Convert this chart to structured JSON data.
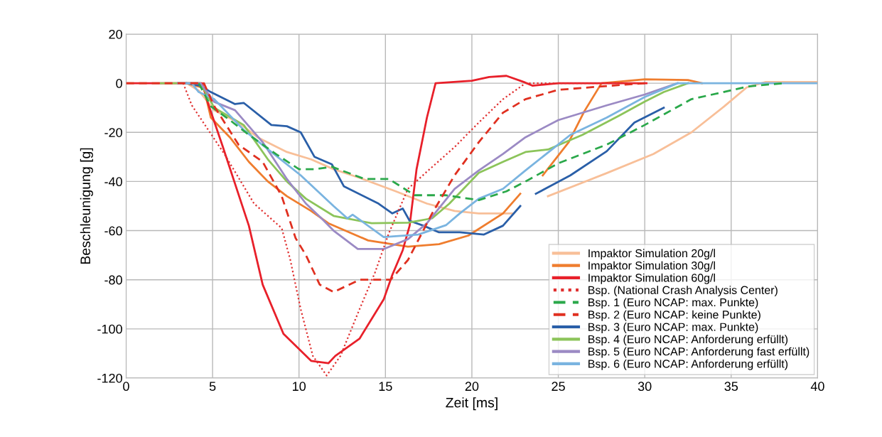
{
  "chart_data": {
    "type": "line",
    "xlabel": "Zeit [ms]",
    "ylabel": "Beschleunigung [g]",
    "xlim": [
      0,
      40
    ],
    "xticks": [
      0,
      5,
      10,
      15,
      20,
      25,
      30,
      35,
      40
    ],
    "ylim": [
      -120,
      20
    ],
    "yticks": [
      -120,
      -100,
      -80,
      -60,
      -40,
      -20,
      0,
      20
    ],
    "grid": true,
    "legend": "bottom right",
    "marker": "none",
    "series": [
      {
        "name": "Impaktor Simulation 20g/l",
        "color": "#f8bf98",
        "line_style": "solid",
        "x": [
          3.5,
          4.2,
          5.1,
          6.5,
          7.6,
          9.3,
          10.7,
          12,
          13.5,
          15.6,
          17.4,
          19,
          20.4,
          22.4,
          23.5,
          24.4,
          27.8,
          30.5,
          32.7,
          34.6,
          35.9,
          37,
          40
        ],
        "values": [
          0,
          -3,
          -11,
          -16,
          -22,
          -28,
          -31,
          -35,
          -38.5,
          -44,
          -49,
          -52,
          -53,
          -53,
          null,
          -46,
          -36.6,
          -28.8,
          -20,
          -9.4,
          -1.7,
          0.5,
          0.5
        ]
      },
      {
        "name": "Impaktor Simulation 30g/l",
        "color": "#ef7d2e",
        "line_style": "solid",
        "x": [
          3.5,
          4.5,
          4.9,
          6,
          7.1,
          8.2,
          9.3,
          10.7,
          11.7,
          14,
          16.3,
          18.1,
          19.8,
          21.8,
          22.8,
          23.3,
          24.1,
          25.6,
          26.5,
          27.5,
          30,
          32.5,
          33.3
        ],
        "values": [
          0,
          -2,
          -14,
          -22,
          -32,
          -40,
          -46,
          -52,
          -57,
          -64,
          -66.5,
          -65.5,
          -62,
          -53,
          -45,
          null,
          -37.5,
          -24,
          -11.5,
          0,
          1.6,
          1.3,
          0
        ]
      },
      {
        "name": "Impaktor Simulation 60g/l",
        "color": "#e8202a",
        "line_style": "solid",
        "x": [
          0,
          4.4,
          4.7,
          5.6,
          7.1,
          7.9,
          9.1,
          10.7,
          11.7,
          12.1,
          13.5,
          14.9,
          15.4,
          16,
          16.4,
          16.8,
          17.4,
          17.9,
          20,
          21,
          22,
          23,
          23.5,
          25,
          30.1
        ],
        "values": [
          0,
          0,
          -7.4,
          -26,
          -58,
          -82,
          -102,
          -113,
          -114,
          -111,
          -104,
          -88,
          -78,
          -68,
          -58,
          -35,
          -14,
          0,
          1,
          2.5,
          3,
          0.5,
          -1,
          0,
          0
        ]
      },
      {
        "name": "Bsp. (National Crash Analysis Center)",
        "color": "#e03030",
        "line_style": "dotted",
        "x": [
          3.3,
          3.8,
          5.7,
          7.4,
          9,
          9.5,
          10.1,
          10.8,
          11.6,
          12.4,
          13.5,
          14.4,
          15.2,
          16.3,
          17.4,
          19,
          20.4,
          21.8,
          23.1,
          30
        ],
        "values": [
          0,
          -9,
          -29,
          -49,
          -59,
          -72,
          -92,
          -111,
          -119,
          -111,
          -92,
          -77,
          -61,
          -43,
          -36,
          -26,
          -16,
          -6.5,
          0,
          0
        ]
      },
      {
        "name": "Bsp. 1 (Euro NCAP: max. Punkte)",
        "color": "#2aa84a",
        "line_style": "dashed",
        "x": [
          4.2,
          4.9,
          6,
          7.1,
          8.7,
          10,
          10.9,
          11.9,
          13.8,
          15.2,
          16.7,
          18.5,
          20.4,
          22,
          23.1,
          25,
          27.8,
          30,
          32.7,
          36,
          38
        ],
        "values": [
          0,
          -9.4,
          -15,
          -21,
          -29,
          -35,
          -35,
          -34,
          -39,
          -39,
          -45.6,
          -45.6,
          -47.6,
          -44,
          -40,
          -32.6,
          -25,
          -17,
          -6.5,
          -1.3,
          0
        ]
      },
      {
        "name": "Bsp. 2 (Euro NCAP: keine Punkte)",
        "color": "#e03020",
        "line_style": "dashed",
        "x": [
          0,
          4.5,
          5.1,
          6.5,
          7.9,
          9,
          9.8,
          10.4,
          11.2,
          12,
          13.5,
          15.3,
          16.3,
          17.7,
          19,
          20.4,
          21.8,
          23.1,
          25,
          27.5,
          30
        ],
        "values": [
          0,
          0,
          -9.4,
          -25,
          -32,
          -46,
          -63,
          -70,
          -82,
          -85,
          -80,
          -80,
          -72,
          -53,
          -37.5,
          -24,
          -12,
          -6.5,
          -2.7,
          -1.3,
          0
        ]
      },
      {
        "name": "Bsp. 3 (Euro NCAP: max. Punkte)",
        "color": "#2a5fa8",
        "line_style": "solid",
        "x": [
          3.5,
          4.3,
          4.9,
          6.3,
          6.8,
          8.4,
          9.3,
          10.1,
          10.9,
          11.9,
          12.6,
          14.6,
          15.4,
          16,
          16.4,
          17.2,
          18.1,
          19.3,
          20.7,
          21.8,
          22.8,
          23.2,
          23.7,
          25.7,
          27.8,
          29.4,
          31.1
        ],
        "values": [
          0,
          -1,
          -3.6,
          -8.5,
          -8,
          -17,
          -17.5,
          -20,
          -30,
          -33,
          -42,
          -49,
          -53,
          -51,
          -56,
          -58,
          -60.7,
          -60.7,
          -61.6,
          -58,
          -50,
          null,
          -45,
          -37.5,
          -27.7,
          -16,
          -10
        ]
      },
      {
        "name": "Bsp. 4 (Euro NCAP: Anforderung erfüllt)",
        "color": "#8cc45a",
        "line_style": "solid",
        "x": [
          2,
          4.3,
          5.1,
          6.8,
          8.2,
          9.3,
          10.4,
          12,
          14.2,
          16.3,
          17.7,
          18.7,
          20.4,
          21.8,
          23.1,
          24.4,
          26.4,
          28.5,
          30,
          31.1,
          32.5
        ],
        "values": [
          0,
          0,
          -10,
          -17,
          -31,
          -40,
          -47,
          -54,
          -57,
          -56.8,
          -55,
          -49,
          -36.5,
          -32,
          -28,
          -27,
          -21,
          -13.3,
          -7.5,
          -3.6,
          0
        ]
      },
      {
        "name": "Bsp. 5 (Euro NCAP: Anforderung fast erfüllt)",
        "color": "#9b8ac4",
        "line_style": "solid",
        "x": [
          3,
          4.3,
          5.1,
          6.3,
          7.9,
          9.3,
          10.4,
          11.3,
          12,
          13.4,
          14.9,
          16.3,
          17.4,
          19,
          20.4,
          21.8,
          23.1,
          25,
          27.8,
          30,
          31.9
        ],
        "values": [
          0,
          0,
          -7.6,
          -11,
          -24,
          -39,
          -49,
          -55,
          -60,
          -67.5,
          -67.5,
          -63.5,
          -57,
          -43,
          -35.5,
          -28.8,
          -22,
          -15,
          -9,
          -4.6,
          0
        ]
      },
      {
        "name": "Bsp. 6 (Euro NCAP: Anforderung erfüllt)",
        "color": "#7ab4e0",
        "line_style": "solid",
        "x": [
          3,
          3.8,
          4.2,
          5.1,
          6.8,
          8.4,
          10.1,
          12,
          12.8,
          13.1,
          14.9,
          16.9,
          18.5,
          19.3,
          20.4,
          21.8,
          23.1,
          25.7,
          27.8,
          30,
          31.9,
          40
        ],
        "values": [
          0,
          0,
          -3.6,
          -6.5,
          -19,
          -28,
          -37.5,
          -50,
          -55,
          -53.5,
          -62.6,
          -61.6,
          -57.8,
          -53,
          -47,
          -43,
          -35.5,
          -21,
          -14,
          -5.6,
          0,
          0
        ]
      }
    ]
  }
}
